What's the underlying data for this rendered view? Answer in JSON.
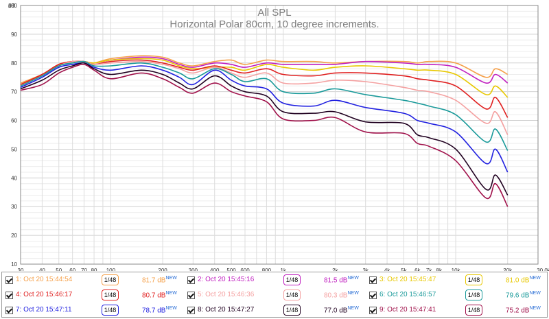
{
  "chart_data": {
    "type": "line",
    "title": "All SPL",
    "subtitle": "Horizontal Polar 80cm, 10 degree increments.",
    "ylabel": "dB",
    "xunit": "Hz",
    "x_scale": "log",
    "xlim": [
      30,
      30000
    ],
    "ylim": [
      10,
      100
    ],
    "grid": true,
    "y_ticks": [
      "100",
      "90",
      "80",
      "70",
      "60",
      "50",
      "40",
      "30",
      "20",
      "10"
    ],
    "x_ticks": [
      {
        "v": 30,
        "t": "30"
      },
      {
        "v": 40,
        "t": "40"
      },
      {
        "v": 50,
        "t": "50"
      },
      {
        "v": 60,
        "t": "60"
      },
      {
        "v": 70,
        "t": "70"
      },
      {
        "v": 80,
        "t": "80"
      },
      {
        "v": 100,
        "t": "100"
      },
      {
        "v": 200,
        "t": "200"
      },
      {
        "v": 300,
        "t": "300"
      },
      {
        "v": 400,
        "t": "400"
      },
      {
        "v": 500,
        "t": "500"
      },
      {
        "v": 600,
        "t": "600"
      },
      {
        "v": 800,
        "t": "800"
      },
      {
        "v": 1000,
        "t": "1k"
      },
      {
        "v": 2000,
        "t": "2k"
      },
      {
        "v": 3000,
        "t": "3k"
      },
      {
        "v": 4000,
        "t": "4k"
      },
      {
        "v": 5000,
        "t": "5k"
      },
      {
        "v": 6000,
        "t": "6k"
      },
      {
        "v": 7000,
        "t": "7k"
      },
      {
        "v": 8000,
        "t": "8k"
      },
      {
        "v": 10000,
        "t": "10k"
      },
      {
        "v": 20000,
        "t": "20k"
      },
      {
        "v": 30000,
        "t": "30.0k Hz"
      }
    ],
    "series": [
      {
        "name": "1: Oct 20 15:44:54",
        "color": "#f5a04a",
        "level": "81.7 dB",
        "new": "NEW",
        "points": [
          [
            30,
            73
          ],
          [
            40,
            76
          ],
          [
            50,
            79
          ],
          [
            60,
            80.5
          ],
          [
            70,
            80.5
          ],
          [
            80,
            80
          ],
          [
            100,
            81.5
          ],
          [
            150,
            82.5
          ],
          [
            200,
            82
          ],
          [
            250,
            80
          ],
          [
            300,
            79
          ],
          [
            400,
            80.5
          ],
          [
            500,
            81
          ],
          [
            600,
            79.5
          ],
          [
            800,
            81
          ],
          [
            1000,
            80.5
          ],
          [
            1500,
            80.5
          ],
          [
            2000,
            80
          ],
          [
            3000,
            80.5
          ],
          [
            5000,
            80.5
          ],
          [
            6000,
            80
          ],
          [
            7000,
            80.5
          ],
          [
            10000,
            80
          ],
          [
            15000,
            75
          ],
          [
            17000,
            78
          ],
          [
            20000,
            76
          ]
        ]
      },
      {
        "name": "2: Oct 20 15:45:16",
        "color": "#c020c0",
        "level": "81.5 dB",
        "new": "NEW",
        "points": [
          [
            30,
            72.5
          ],
          [
            40,
            76
          ],
          [
            50,
            79.5
          ],
          [
            60,
            80.5
          ],
          [
            70,
            80.5
          ],
          [
            80,
            80
          ],
          [
            100,
            81
          ],
          [
            150,
            82
          ],
          [
            200,
            81.5
          ],
          [
            250,
            79.5
          ],
          [
            300,
            78.5
          ],
          [
            400,
            80
          ],
          [
            500,
            79.5
          ],
          [
            600,
            78.5
          ],
          [
            800,
            80
          ],
          [
            1000,
            79.5
          ],
          [
            1500,
            79.5
          ],
          [
            2000,
            79.5
          ],
          [
            3000,
            80.5
          ],
          [
            5000,
            80
          ],
          [
            6000,
            79.5
          ],
          [
            7000,
            79.5
          ],
          [
            10000,
            78.5
          ],
          [
            15000,
            73
          ],
          [
            17000,
            76
          ],
          [
            20000,
            73
          ]
        ]
      },
      {
        "name": "3: Oct 20 15:45:47",
        "color": "#e8c800",
        "level": "81.0 dB",
        "new": "NEW",
        "points": [
          [
            30,
            72.5
          ],
          [
            40,
            76
          ],
          [
            50,
            79.5
          ],
          [
            60,
            80.5
          ],
          [
            70,
            80.5
          ],
          [
            80,
            80
          ],
          [
            100,
            81
          ],
          [
            150,
            81.5
          ],
          [
            200,
            81
          ],
          [
            250,
            79
          ],
          [
            300,
            78
          ],
          [
            400,
            78.5
          ],
          [
            500,
            78.5
          ],
          [
            600,
            77.5
          ],
          [
            800,
            79.5
          ],
          [
            1000,
            78.5
          ],
          [
            1500,
            77.5
          ],
          [
            2000,
            78.5
          ],
          [
            3000,
            79
          ],
          [
            5000,
            78
          ],
          [
            6000,
            77.5
          ],
          [
            7000,
            77.5
          ],
          [
            10000,
            76
          ],
          [
            15000,
            69
          ],
          [
            17000,
            72
          ],
          [
            20000,
            68
          ]
        ]
      },
      {
        "name": "4: Oct 20 15:46:17",
        "color": "#e02020",
        "level": "80.7 dB",
        "new": "NEW",
        "points": [
          [
            30,
            72.5
          ],
          [
            40,
            76
          ],
          [
            50,
            79.5
          ],
          [
            60,
            80.5
          ],
          [
            70,
            80.5
          ],
          [
            80,
            79.5
          ],
          [
            100,
            80.5
          ],
          [
            150,
            81
          ],
          [
            200,
            80
          ],
          [
            250,
            78.5
          ],
          [
            300,
            77.5
          ],
          [
            400,
            79
          ],
          [
            500,
            77.5
          ],
          [
            600,
            76.5
          ],
          [
            800,
            78
          ],
          [
            1000,
            76
          ],
          [
            1500,
            75.5
          ],
          [
            2000,
            76.5
          ],
          [
            3000,
            76.5
          ],
          [
            5000,
            75.5
          ],
          [
            6000,
            74.5
          ],
          [
            7000,
            74
          ],
          [
            10000,
            72
          ],
          [
            15000,
            64
          ],
          [
            17000,
            68
          ],
          [
            20000,
            61
          ]
        ]
      },
      {
        "name": "5: Oct 20 15:46:36",
        "color": "#f4a0a0",
        "level": "80.3 dB",
        "new": "NEW",
        "points": [
          [
            30,
            72
          ],
          [
            40,
            75.5
          ],
          [
            50,
            79
          ],
          [
            60,
            80.5
          ],
          [
            70,
            80.5
          ],
          [
            80,
            79.5
          ],
          [
            100,
            80
          ],
          [
            150,
            80.5
          ],
          [
            200,
            79.5
          ],
          [
            250,
            78
          ],
          [
            300,
            76.5
          ],
          [
            400,
            78.5
          ],
          [
            500,
            76.5
          ],
          [
            600,
            75
          ],
          [
            800,
            76.5
          ],
          [
            1000,
            73
          ],
          [
            1500,
            73
          ],
          [
            2000,
            74
          ],
          [
            3000,
            73.5
          ],
          [
            5000,
            71.5
          ],
          [
            6000,
            70.5
          ],
          [
            7000,
            70
          ],
          [
            10000,
            67
          ],
          [
            15000,
            59
          ],
          [
            17000,
            63
          ],
          [
            20000,
            55
          ]
        ]
      },
      {
        "name": "6: Oct 20 15:46:57",
        "color": "#1a9a9a",
        "level": "79.6 dB",
        "new": "NEW",
        "points": [
          [
            30,
            72
          ],
          [
            40,
            75.5
          ],
          [
            50,
            79
          ],
          [
            60,
            80
          ],
          [
            70,
            80.5
          ],
          [
            80,
            79
          ],
          [
            100,
            79
          ],
          [
            150,
            80
          ],
          [
            200,
            78.5
          ],
          [
            250,
            76.5
          ],
          [
            300,
            74.5
          ],
          [
            400,
            78
          ],
          [
            500,
            76
          ],
          [
            600,
            73.5
          ],
          [
            800,
            74.5
          ],
          [
            1000,
            70
          ],
          [
            1500,
            69.5
          ],
          [
            2000,
            71
          ],
          [
            3000,
            69
          ],
          [
            5000,
            67
          ],
          [
            6000,
            66
          ],
          [
            7000,
            65
          ],
          [
            10000,
            62
          ],
          [
            15000,
            52.5
          ],
          [
            17000,
            57
          ],
          [
            20000,
            49.5
          ]
        ]
      },
      {
        "name": "7: Oct 20 15:47:11",
        "color": "#2020e0",
        "level": "78.7 dB",
        "new": "NEW",
        "points": [
          [
            30,
            71.5
          ],
          [
            40,
            75
          ],
          [
            50,
            78.5
          ],
          [
            60,
            79.5
          ],
          [
            70,
            80
          ],
          [
            80,
            78.5
          ],
          [
            100,
            77.5
          ],
          [
            150,
            79
          ],
          [
            200,
            77.5
          ],
          [
            250,
            75
          ],
          [
            300,
            72.5
          ],
          [
            400,
            77.5
          ],
          [
            500,
            74
          ],
          [
            600,
            72
          ],
          [
            800,
            71
          ],
          [
            1000,
            66
          ],
          [
            1500,
            65
          ],
          [
            2000,
            67
          ],
          [
            3000,
            64.5
          ],
          [
            5000,
            62.5
          ],
          [
            6000,
            60
          ],
          [
            7000,
            59
          ],
          [
            10000,
            56
          ],
          [
            15000,
            45
          ],
          [
            17000,
            50
          ],
          [
            20000,
            42
          ]
        ]
      },
      {
        "name": "8: Oct 20 15:47:27",
        "color": "#200020",
        "level": "77.0 dB",
        "new": "NEW",
        "points": [
          [
            30,
            71
          ],
          [
            40,
            74
          ],
          [
            50,
            77.5
          ],
          [
            60,
            79
          ],
          [
            70,
            80
          ],
          [
            80,
            78
          ],
          [
            100,
            76
          ],
          [
            150,
            77.5
          ],
          [
            200,
            76
          ],
          [
            250,
            73
          ],
          [
            300,
            71
          ],
          [
            400,
            75.5
          ],
          [
            500,
            72
          ],
          [
            600,
            70
          ],
          [
            800,
            68.5
          ],
          [
            1000,
            63
          ],
          [
            1500,
            62.5
          ],
          [
            2000,
            63
          ],
          [
            3000,
            59.5
          ],
          [
            5000,
            59
          ],
          [
            6000,
            55
          ],
          [
            7000,
            54
          ],
          [
            10000,
            50
          ],
          [
            15000,
            36
          ],
          [
            17000,
            41
          ],
          [
            20000,
            34
          ]
        ]
      },
      {
        "name": "9: Oct 20 15:47:41",
        "color": "#a0104a",
        "level": "75.2 dB",
        "new": "NEW",
        "points": [
          [
            30,
            70.5
          ],
          [
            40,
            72.5
          ],
          [
            50,
            76.5
          ],
          [
            60,
            78.5
          ],
          [
            70,
            79.5
          ],
          [
            80,
            77.5
          ],
          [
            100,
            74.5
          ],
          [
            150,
            76.5
          ],
          [
            200,
            74.5
          ],
          [
            250,
            71.5
          ],
          [
            300,
            69.5
          ],
          [
            400,
            73
          ],
          [
            500,
            70
          ],
          [
            600,
            68.5
          ],
          [
            800,
            66.5
          ],
          [
            1000,
            60.5
          ],
          [
            1500,
            60
          ],
          [
            2000,
            61
          ],
          [
            3000,
            56
          ],
          [
            5000,
            55.5
          ],
          [
            6000,
            52
          ],
          [
            7000,
            51
          ],
          [
            10000,
            46
          ],
          [
            15000,
            33
          ],
          [
            17000,
            38
          ],
          [
            20000,
            30
          ]
        ]
      }
    ]
  },
  "smoothing_label": "1/48"
}
